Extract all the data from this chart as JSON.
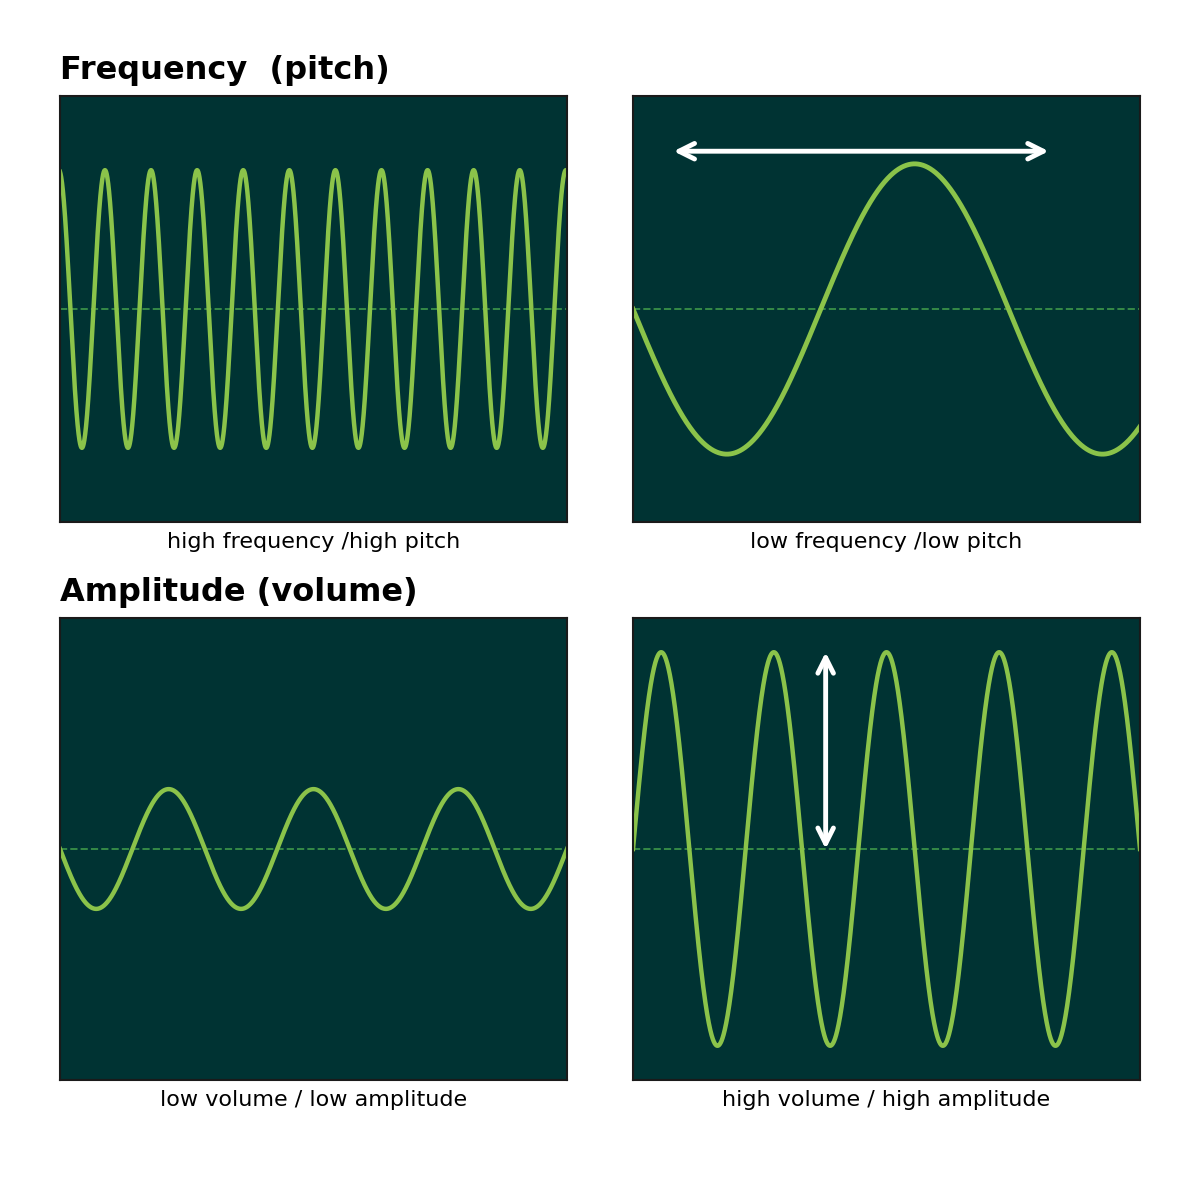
{
  "bg_color": "#003333",
  "wave_color": "#8BC34A",
  "dashed_color": "#4CAF50",
  "white": "#FFFFFF",
  "title1": "Frequency  (pitch)",
  "title2": "Amplitude (volume)",
  "label_tl": "high frequency /high pitch",
  "label_tr": "low frequency /low pitch",
  "label_bl": "low volume / low amplitude",
  "label_br": "high volume / high amplitude",
  "title_fontsize": 23,
  "label_fontsize": 16,
  "wave_linewidth": 3.2,
  "dashed_linewidth": 1.4,
  "panel_bg": "#003333"
}
